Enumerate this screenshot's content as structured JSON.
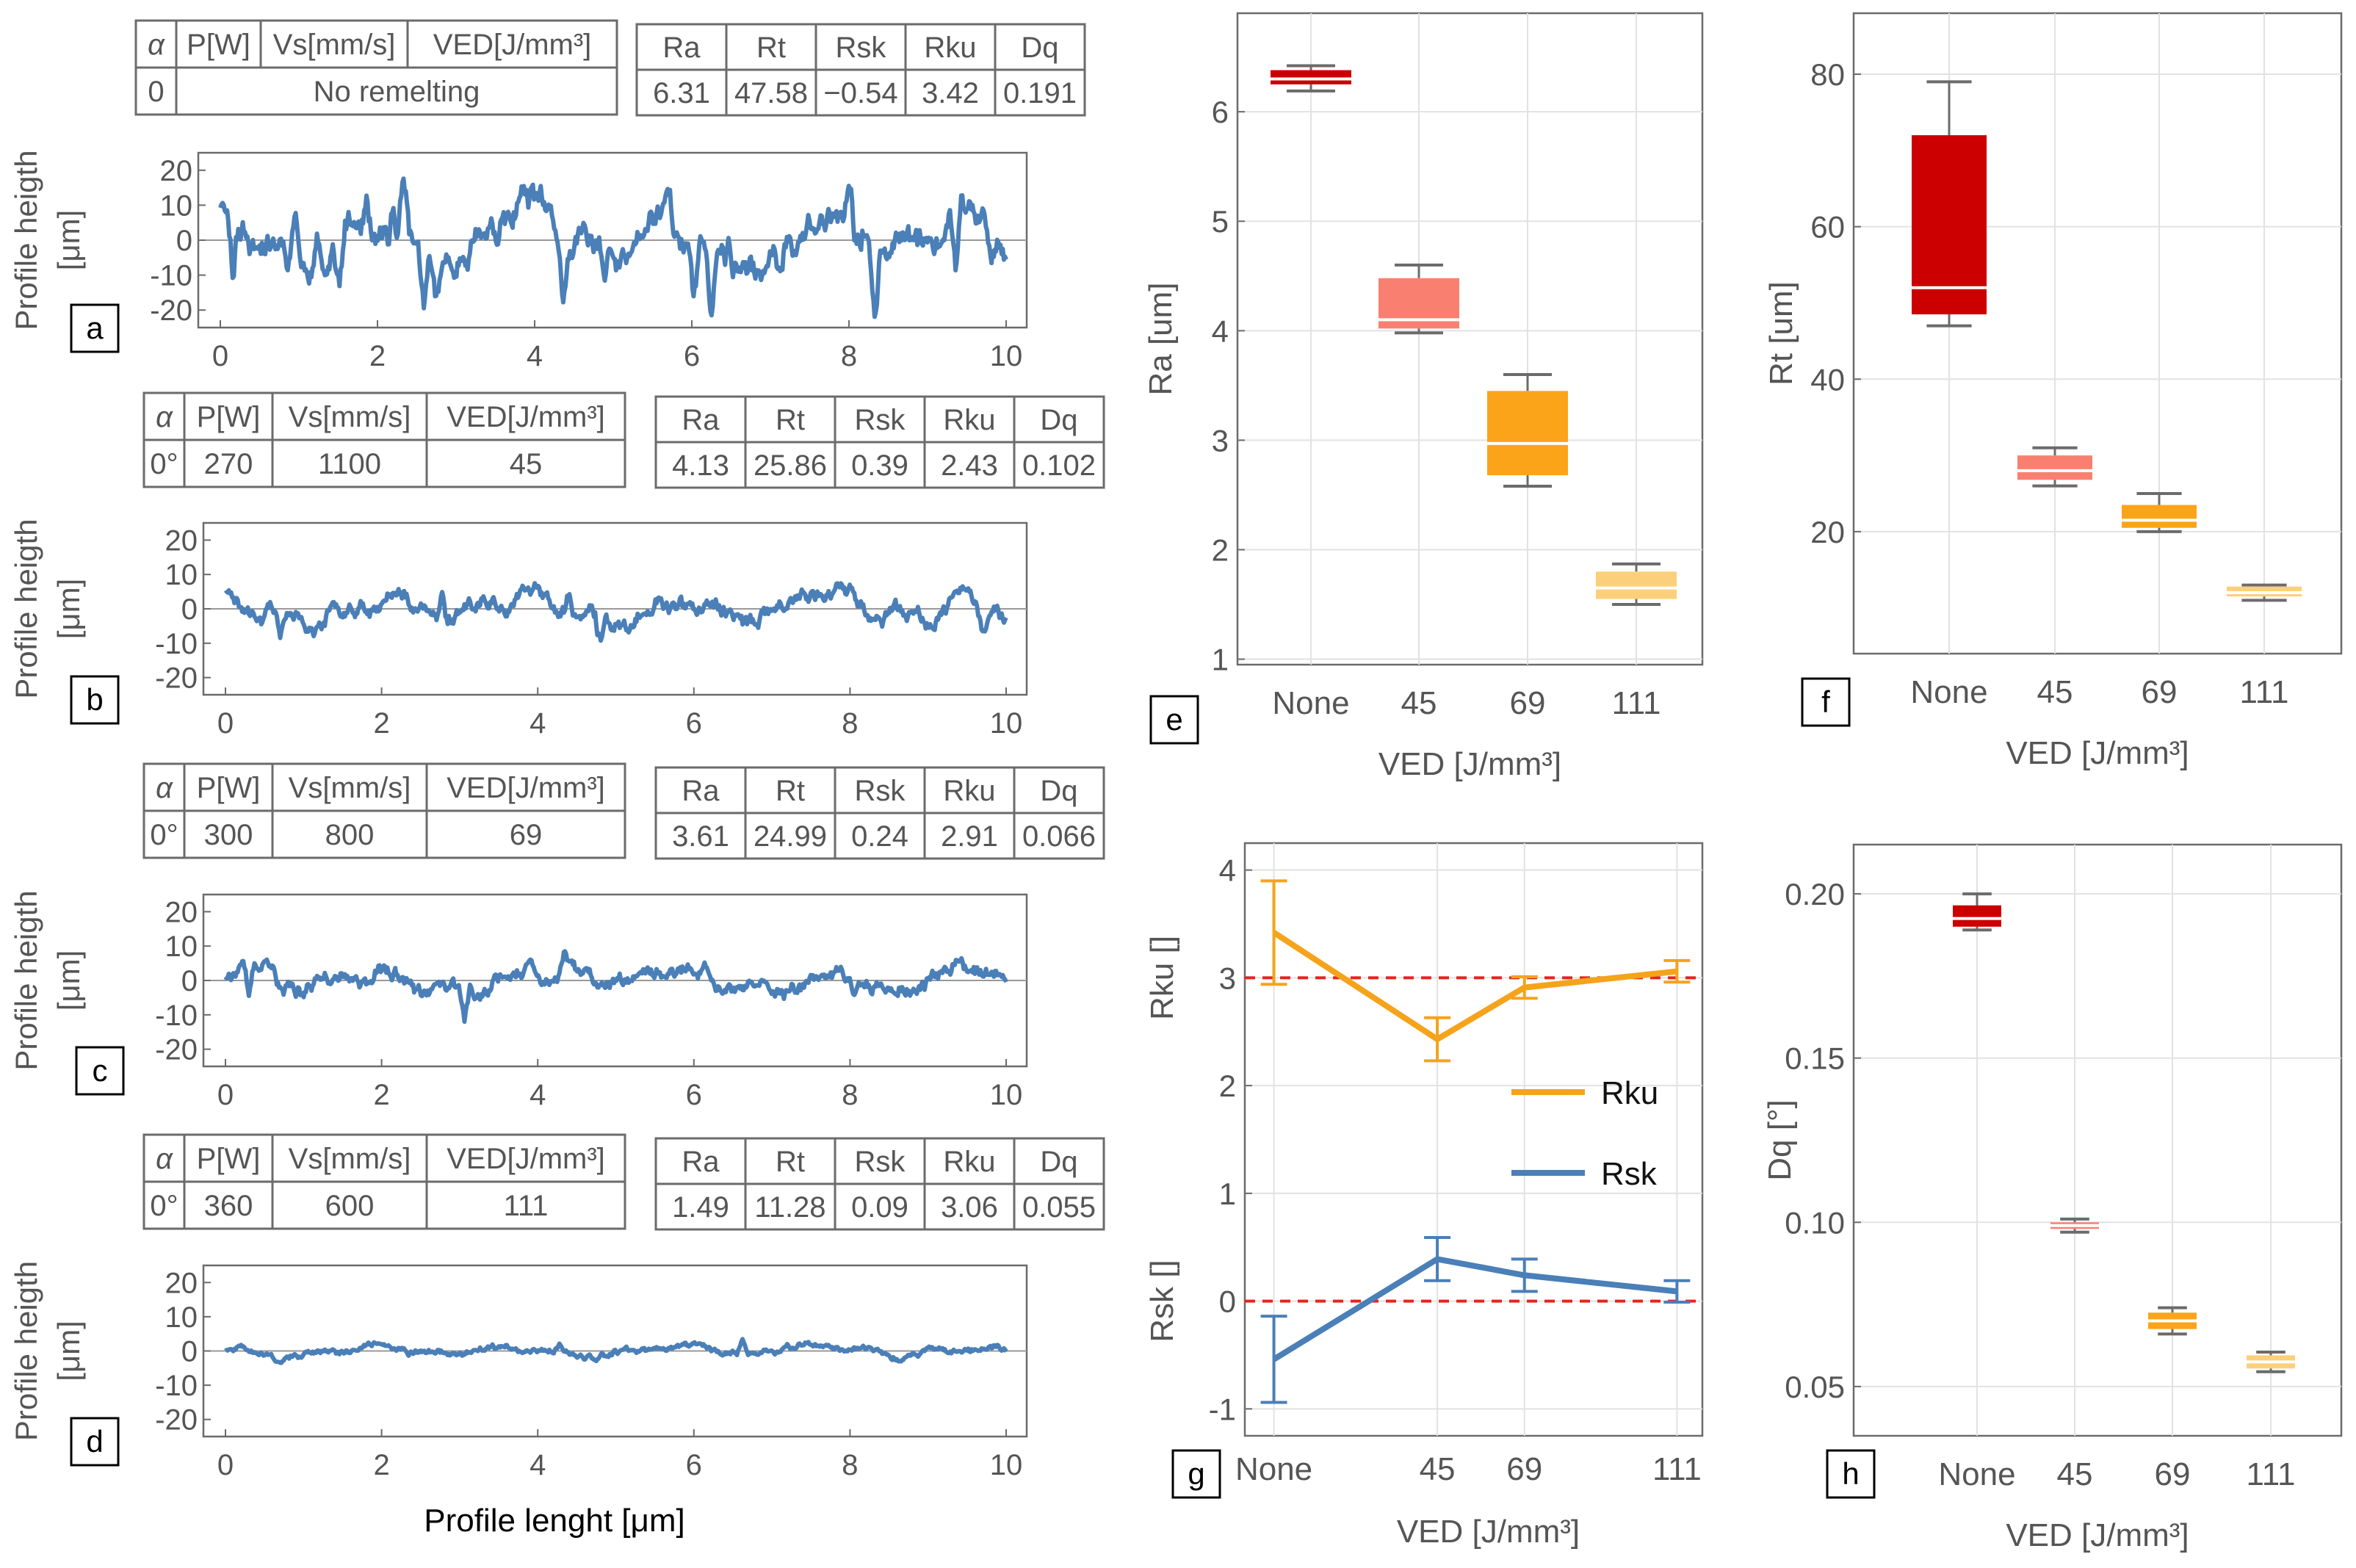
{
  "figure": {
    "profile_ylabel_line1": "Profile heigth",
    "profile_ylabel_line2": "[μm]",
    "profile_xlabel": "Profile lenght [μm]"
  },
  "colors": {
    "profile_line": "#4a7fb8",
    "none": "#cc0000",
    "ved45": "#f98070",
    "ved69": "#fba41a",
    "ved111": "#fcd07a",
    "rku_line": "#f5a31a",
    "rsk_line": "#4a7fb8",
    "ref_line": "#e8231d"
  },
  "profiles": [
    {
      "panel_label": "a",
      "param_headers": [
        "α",
        "P[W]",
        "Vs[mm/s]",
        "VED[J/mm³]"
      ],
      "param_values": [
        "0",
        "No remelting"
      ],
      "metric_headers": [
        "Ra",
        "Rt",
        "Rsk",
        "Rku",
        "Dq"
      ],
      "metric_values": [
        "6.31",
        "47.58",
        "−0.54",
        "3.42",
        "0.191"
      ]
    },
    {
      "panel_label": "b",
      "param_headers": [
        "α",
        "P[W]",
        "Vs[mm/s]",
        "VED[J/mm³]"
      ],
      "param_values": [
        "0°",
        "270",
        "1100",
        "45"
      ],
      "metric_headers": [
        "Ra",
        "Rt",
        "Rsk",
        "Rku",
        "Dq"
      ],
      "metric_values": [
        "4.13",
        "25.86",
        "0.39",
        "2.43",
        "0.102"
      ]
    },
    {
      "panel_label": "c",
      "param_headers": [
        "α",
        "P[W]",
        "Vs[mm/s]",
        "VED[J/mm³]"
      ],
      "param_values": [
        "0°",
        "300",
        "800",
        "69"
      ],
      "metric_headers": [
        "Ra",
        "Rt",
        "Rsk",
        "Rku",
        "Dq"
      ],
      "metric_values": [
        "3.61",
        "24.99",
        "0.24",
        "2.91",
        "0.066"
      ]
    },
    {
      "panel_label": "d",
      "param_headers": [
        "α",
        "P[W]",
        "Vs[mm/s]",
        "VED[J/mm³]"
      ],
      "param_values": [
        "0°",
        "360",
        "600",
        "111"
      ],
      "metric_headers": [
        "Ra",
        "Rt",
        "Rsk",
        "Rku",
        "Dq"
      ],
      "metric_values": [
        "1.49",
        "11.28",
        "0.09",
        "3.06",
        "0.055"
      ]
    }
  ],
  "chart_data": [
    {
      "type": "line",
      "panel": "a",
      "xlim": [
        0,
        10
      ],
      "ylim": [
        -25,
        25
      ],
      "xticks": [
        0,
        2,
        4,
        6,
        8,
        10
      ],
      "yticks": [
        -20,
        -10,
        0,
        10,
        20
      ],
      "amplitude": 9.5,
      "seed": 11,
      "spikes": 20,
      "series": [
        {
          "name": "profile"
        }
      ]
    },
    {
      "type": "line",
      "panel": "b",
      "xlim": [
        0,
        10
      ],
      "ylim": [
        -25,
        25
      ],
      "xticks": [
        0,
        2,
        4,
        6,
        8,
        10
      ],
      "yticks": [
        -20,
        -10,
        0,
        10,
        20
      ],
      "amplitude": 5.5,
      "seed": 23,
      "spikes": 6,
      "series": [
        {
          "name": "profile"
        }
      ]
    },
    {
      "type": "line",
      "panel": "c",
      "xlim": [
        0,
        10
      ],
      "ylim": [
        -25,
        25
      ],
      "xticks": [
        0,
        2,
        4,
        6,
        8,
        10
      ],
      "yticks": [
        -20,
        -10,
        0,
        10,
        20
      ],
      "amplitude": 5,
      "seed": 37,
      "spikes": 4,
      "series": [
        {
          "name": "profile"
        }
      ]
    },
    {
      "type": "line",
      "panel": "d",
      "xlim": [
        0,
        10
      ],
      "ylim": [
        -25,
        25
      ],
      "xticks": [
        0,
        2,
        4,
        6,
        8,
        10
      ],
      "yticks": [
        -20,
        -10,
        0,
        10,
        20
      ],
      "amplitude": 2,
      "seed": 51,
      "spikes": 2,
      "series": [
        {
          "name": "profile"
        }
      ]
    },
    {
      "type": "box",
      "panel": "e",
      "categories": [
        "None",
        "45",
        "69",
        "111"
      ],
      "ylabel": "Ra [um]",
      "xlabel": "VED [J/mm³]",
      "ylim": [
        0.95,
        6.9
      ],
      "yticks": [
        1,
        2,
        3,
        4,
        5,
        6
      ],
      "boxes": [
        {
          "min": 6.19,
          "q1": 6.25,
          "median": 6.3,
          "q3": 6.38,
          "max": 6.42
        },
        {
          "min": 3.98,
          "q1": 4.02,
          "median": 4.1,
          "q3": 4.48,
          "max": 4.6
        },
        {
          "min": 2.58,
          "q1": 2.68,
          "median": 2.97,
          "q3": 3.45,
          "max": 3.6
        },
        {
          "min": 1.5,
          "q1": 1.55,
          "median": 1.65,
          "q3": 1.8,
          "max": 1.87
        }
      ]
    },
    {
      "type": "box",
      "panel": "f",
      "categories": [
        "None",
        "45",
        "69",
        "111"
      ],
      "ylabel": "Rt [um]",
      "xlabel": "VED [J/mm³]",
      "ylim": [
        4,
        88
      ],
      "yticks": [
        20,
        40,
        60,
        80
      ],
      "boxes": [
        {
          "min": 47,
          "q1": 48.5,
          "median": 52,
          "q3": 72,
          "max": 79
        },
        {
          "min": 26,
          "q1": 26.8,
          "median": 28,
          "q3": 30,
          "max": 31
        },
        {
          "min": 20,
          "q1": 20.5,
          "median": 21.5,
          "q3": 23.5,
          "max": 25
        },
        {
          "min": 11,
          "q1": 11.5,
          "median": 12,
          "q3": 12.8,
          "max": 13
        }
      ]
    },
    {
      "type": "line",
      "panel": "g",
      "x": [
        0,
        45,
        69,
        111
      ],
      "xticklabels": [
        "None",
        "45",
        "69",
        "111"
      ],
      "xlim": [
        -8,
        118
      ],
      "ylim": [
        -1.25,
        4.25
      ],
      "yticks": [
        -1,
        0,
        1,
        2,
        3,
        4
      ],
      "ylabel_top": "Rku []",
      "ylabel_bottom": "Rsk []",
      "xlabel": "VED [J/mm³]",
      "reference_lines": [
        0,
        3
      ],
      "series": [
        {
          "name": "Rku",
          "values": [
            3.42,
            2.43,
            2.91,
            3.06
          ],
          "err": [
            0.48,
            0.2,
            0.1,
            0.1
          ]
        },
        {
          "name": "Rsk",
          "values": [
            -0.54,
            0.39,
            0.24,
            0.09
          ],
          "err": [
            0.4,
            0.2,
            0.15,
            0.1
          ]
        }
      ]
    },
    {
      "type": "box",
      "panel": "h",
      "categories": [
        "None",
        "45",
        "69",
        "111"
      ],
      "ylabel": "Dq [°]",
      "xlabel": "VED [J/mm³]",
      "ylim": [
        0.035,
        0.215
      ],
      "yticks": [
        0.05,
        0.1,
        0.15,
        0.2
      ],
      "ytick_labels": [
        "0.05",
        "0.10",
        "0.15",
        "0.20"
      ],
      "boxes": [
        {
          "min": 0.189,
          "q1": 0.19,
          "median": 0.1925,
          "q3": 0.1965,
          "max": 0.2
        },
        {
          "min": 0.097,
          "q1": 0.098,
          "median": 0.099,
          "q3": 0.1,
          "max": 0.101
        },
        {
          "min": 0.066,
          "q1": 0.0675,
          "median": 0.07,
          "q3": 0.0725,
          "max": 0.074
        },
        {
          "min": 0.0545,
          "q1": 0.0555,
          "median": 0.0575,
          "q3": 0.0595,
          "max": 0.0605
        }
      ]
    }
  ]
}
